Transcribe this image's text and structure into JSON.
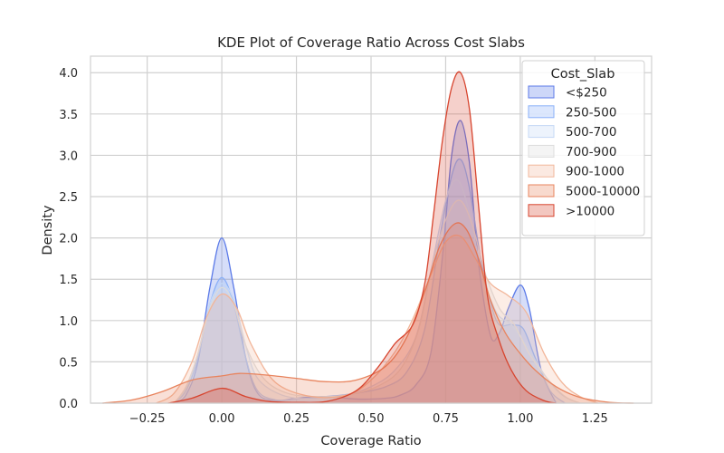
{
  "chart_data": {
    "type": "area",
    "title": "KDE Plot of Coverage Ratio Across Cost Slabs",
    "xlabel": "Coverage Ratio",
    "ylabel": "Density",
    "xlim": [
      -0.44,
      1.44
    ],
    "ylim": [
      0,
      4.2
    ],
    "xticks": [
      -0.25,
      0.0,
      0.25,
      0.5,
      0.75,
      1.0,
      1.25
    ],
    "xtick_labels": [
      "−0.25",
      "0.00",
      "0.25",
      "0.50",
      "0.75",
      "1.00",
      "1.25"
    ],
    "yticks": [
      0.0,
      0.5,
      1.0,
      1.5,
      2.0,
      2.5,
      3.0,
      3.5,
      4.0
    ],
    "ytick_labels": [
      "0.0",
      "0.5",
      "1.0",
      "1.5",
      "2.0",
      "2.5",
      "3.0",
      "3.5",
      "4.0"
    ],
    "grid": true,
    "legend": {
      "title": "Cost_Slab",
      "placement": "top-right"
    },
    "series": [
      {
        "name": "<$250",
        "color": "#5b7ae8",
        "x": [
          -0.16,
          -0.12,
          -0.08,
          -0.04,
          0.0,
          0.04,
          0.08,
          0.12,
          0.18,
          0.25,
          0.35,
          0.45,
          0.55,
          0.6,
          0.65,
          0.7,
          0.74,
          0.77,
          0.8,
          0.83,
          0.86,
          0.9,
          0.93,
          0.96,
          1.0,
          1.03,
          1.07,
          1.12
        ],
        "y": [
          0.0,
          0.1,
          0.5,
          1.4,
          2.0,
          1.4,
          0.55,
          0.12,
          0.03,
          0.06,
          0.08,
          0.05,
          0.06,
          0.1,
          0.22,
          0.6,
          1.8,
          3.0,
          3.42,
          2.9,
          1.7,
          0.82,
          0.85,
          1.15,
          1.43,
          1.15,
          0.4,
          0.0
        ]
      },
      {
        "name": "250-500",
        "color": "#8ab0f8",
        "x": [
          -0.16,
          -0.12,
          -0.08,
          -0.04,
          0.0,
          0.04,
          0.08,
          0.12,
          0.18,
          0.25,
          0.35,
          0.45,
          0.55,
          0.62,
          0.68,
          0.73,
          0.77,
          0.8,
          0.83,
          0.87,
          0.92,
          0.97,
          1.01,
          1.05,
          1.1,
          1.15
        ],
        "y": [
          0.0,
          0.15,
          0.55,
          1.2,
          1.52,
          1.2,
          0.55,
          0.15,
          0.04,
          0.05,
          0.08,
          0.12,
          0.2,
          0.38,
          0.9,
          2.0,
          2.75,
          2.95,
          2.6,
          1.7,
          1.0,
          0.95,
          0.9,
          0.55,
          0.15,
          0.0
        ]
      },
      {
        "name": "500-700",
        "color": "#c5d8f6",
        "x": [
          -0.16,
          -0.12,
          -0.08,
          -0.04,
          0.0,
          0.04,
          0.08,
          0.12,
          0.2,
          0.3,
          0.4,
          0.5,
          0.58,
          0.65,
          0.7,
          0.75,
          0.79,
          0.83,
          0.87,
          0.92,
          0.97,
          1.02,
          1.08,
          1.14,
          1.2
        ],
        "y": [
          0.0,
          0.18,
          0.6,
          1.2,
          1.45,
          1.25,
          0.7,
          0.3,
          0.1,
          0.05,
          0.08,
          0.2,
          0.4,
          0.8,
          1.6,
          2.45,
          2.7,
          2.3,
          1.6,
          1.1,
          0.95,
          0.7,
          0.35,
          0.1,
          0.0
        ]
      },
      {
        "name": "700-900",
        "color": "#dcdcdc",
        "x": [
          -0.16,
          -0.12,
          -0.08,
          -0.04,
          0.0,
          0.04,
          0.08,
          0.14,
          0.22,
          0.32,
          0.42,
          0.52,
          0.6,
          0.66,
          0.71,
          0.76,
          0.8,
          0.84,
          0.88,
          0.93,
          0.98,
          1.03,
          1.09,
          1.15,
          1.2
        ],
        "y": [
          0.0,
          0.2,
          0.6,
          1.15,
          1.4,
          1.2,
          0.7,
          0.3,
          0.12,
          0.08,
          0.1,
          0.2,
          0.42,
          0.9,
          1.75,
          2.3,
          2.45,
          2.15,
          1.6,
          1.15,
          0.95,
          0.6,
          0.3,
          0.08,
          0.0
        ]
      },
      {
        "name": "900-1000",
        "color": "#f2b69a",
        "x": [
          -0.22,
          -0.16,
          -0.1,
          -0.05,
          0.0,
          0.05,
          0.1,
          0.18,
          0.3,
          0.42,
          0.5,
          0.58,
          0.64,
          0.7,
          0.75,
          0.8,
          0.85,
          0.9,
          0.96,
          1.02,
          1.08,
          1.14,
          1.2,
          1.26
        ],
        "y": [
          0.0,
          0.12,
          0.5,
          1.05,
          1.32,
          1.15,
          0.7,
          0.25,
          0.08,
          0.1,
          0.28,
          0.62,
          1.02,
          1.55,
          1.95,
          2.02,
          1.75,
          1.45,
          1.3,
          1.1,
          0.6,
          0.25,
          0.08,
          0.0
        ]
      },
      {
        "name": "5000-10000",
        "color": "#e8845e",
        "x": [
          -0.4,
          -0.3,
          -0.2,
          -0.1,
          0.0,
          0.06,
          0.15,
          0.25,
          0.35,
          0.45,
          0.55,
          0.62,
          0.68,
          0.73,
          0.78,
          0.82,
          0.86,
          0.9,
          0.95,
          1.0,
          1.05,
          1.12,
          1.2,
          1.3,
          1.38
        ],
        "y": [
          0.0,
          0.04,
          0.14,
          0.28,
          0.33,
          0.36,
          0.34,
          0.3,
          0.26,
          0.28,
          0.45,
          0.8,
          1.35,
          1.9,
          2.17,
          2.1,
          1.75,
          1.25,
          0.85,
          0.6,
          0.4,
          0.2,
          0.07,
          0.01,
          0.0
        ]
      },
      {
        "name": ">10000",
        "color": "#d7452f",
        "x": [
          -0.18,
          -0.1,
          0.0,
          0.08,
          0.16,
          0.25,
          0.35,
          0.45,
          0.52,
          0.58,
          0.64,
          0.68,
          0.71,
          0.74,
          0.77,
          0.8,
          0.83,
          0.86,
          0.89,
          0.93,
          0.97,
          1.02,
          1.08,
          1.12
        ],
        "y": [
          0.0,
          0.06,
          0.18,
          0.08,
          0.02,
          0.01,
          0.02,
          0.15,
          0.42,
          0.72,
          0.95,
          1.45,
          2.3,
          3.2,
          3.82,
          4.0,
          3.55,
          2.4,
          1.3,
          0.75,
          0.4,
          0.15,
          0.03,
          0.0
        ]
      }
    ]
  }
}
